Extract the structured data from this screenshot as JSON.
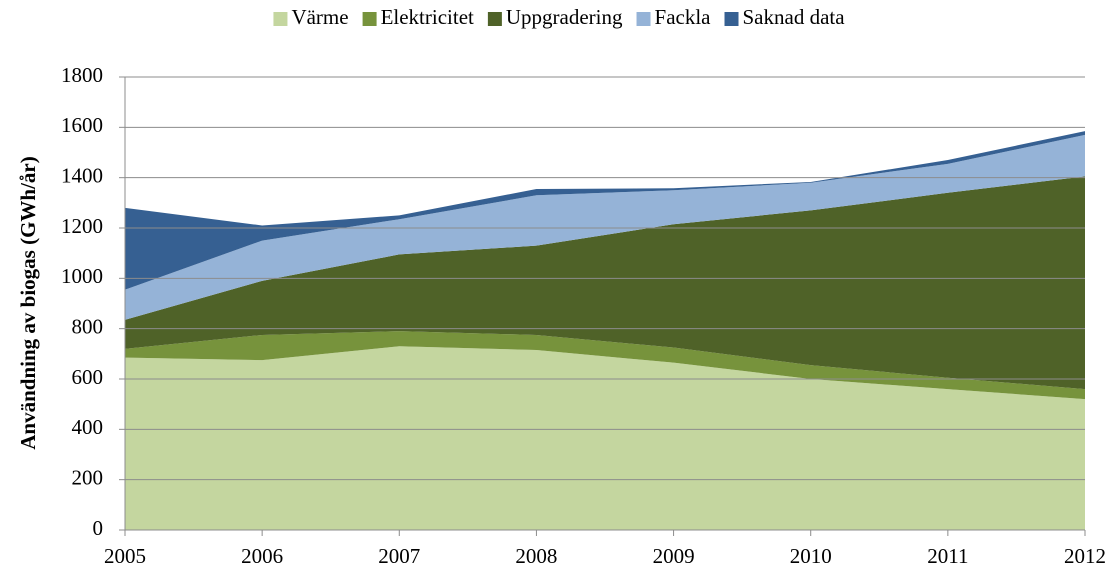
{
  "chart_data": {
    "type": "stacked_area",
    "y_label": "Användning av biogas (GWh/år)",
    "x": [
      2005,
      2006,
      2007,
      2008,
      2009,
      2010,
      2011,
      2012
    ],
    "xlim": [
      2005,
      2012
    ],
    "xticks": [
      2005,
      2006,
      2007,
      2008,
      2009,
      2010,
      2011,
      2012
    ],
    "ylim": [
      0,
      1800
    ],
    "yticks": [
      0,
      200,
      400,
      600,
      800,
      1000,
      1200,
      1400,
      1600,
      1800
    ],
    "grid": true,
    "legend": "top",
    "series": [
      {
        "name": "Värme",
        "color": "#c4d69f",
        "values": [
          685,
          675,
          730,
          715,
          665,
          600,
          560,
          520
        ]
      },
      {
        "name": "Elektricitet",
        "color": "#77933c",
        "values": [
          35,
          100,
          60,
          60,
          60,
          55,
          45,
          40
        ]
      },
      {
        "name": "Uppgradering",
        "color": "#4f6228",
        "values": [
          115,
          215,
          305,
          355,
          490,
          615,
          735,
          845
        ]
      },
      {
        "name": "Fackla",
        "color": "#95b3d7",
        "values": [
          120,
          160,
          140,
          200,
          135,
          110,
          115,
          165
        ]
      },
      {
        "name": "Saknad data",
        "color": "#366092",
        "values": [
          325,
          60,
          15,
          25,
          8,
          3,
          15,
          15
        ]
      }
    ]
  }
}
